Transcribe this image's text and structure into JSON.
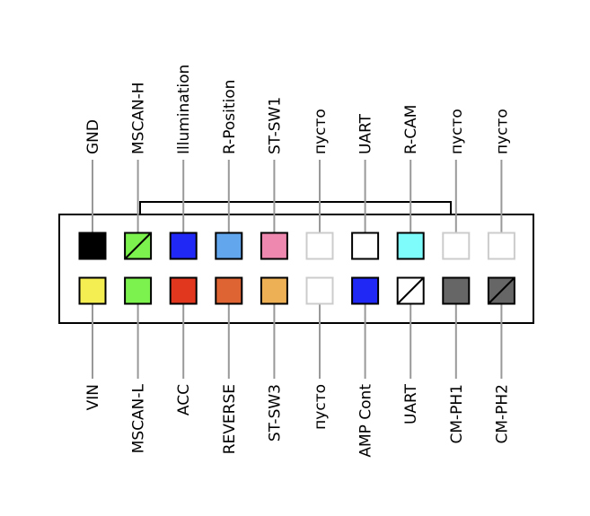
{
  "connector": {
    "top_row": [
      {
        "label": "GND",
        "color": "#000000",
        "pattern": "solid"
      },
      {
        "label": "MSCAN-H",
        "color": "#7CF24E",
        "pattern": "diagonal"
      },
      {
        "label": "Illumination",
        "color": "#1F28F5",
        "pattern": "solid"
      },
      {
        "label": "R-Position",
        "color": "#62A6EE",
        "pattern": "solid"
      },
      {
        "label": "ST-SW1",
        "color": "#EE88AE",
        "pattern": "solid"
      },
      {
        "label": "пусто",
        "color": "#ffffff",
        "pattern": "empty"
      },
      {
        "label": "UART",
        "color": "#ffffff",
        "pattern": "solid"
      },
      {
        "label": "R-CAM",
        "color": "#7EFBFB",
        "pattern": "solid"
      },
      {
        "label": "пусто",
        "color": "#ffffff",
        "pattern": "empty"
      },
      {
        "label": "пусто",
        "color": "#ffffff",
        "pattern": "empty"
      }
    ],
    "bottom_row": [
      {
        "label": "VIN",
        "color": "#F5EE52",
        "pattern": "solid"
      },
      {
        "label": "MSCAN-L",
        "color": "#7CF24E",
        "pattern": "solid"
      },
      {
        "label": "ACC",
        "color": "#E2371F",
        "pattern": "solid"
      },
      {
        "label": "REVERSE",
        "color": "#DE6434",
        "pattern": "solid"
      },
      {
        "label": "ST-SW3",
        "color": "#EDB054",
        "pattern": "solid"
      },
      {
        "label": "пусто",
        "color": "#ffffff",
        "pattern": "empty"
      },
      {
        "label": "AMP Cont",
        "color": "#1F28F5",
        "pattern": "solid"
      },
      {
        "label": "UART",
        "color": "#ffffff",
        "pattern": "diagonal"
      },
      {
        "label": "CM-PH1",
        "color": "#666666",
        "pattern": "solid"
      },
      {
        "label": "CM-PH2",
        "color": "#666666",
        "pattern": "diagonal"
      }
    ]
  }
}
